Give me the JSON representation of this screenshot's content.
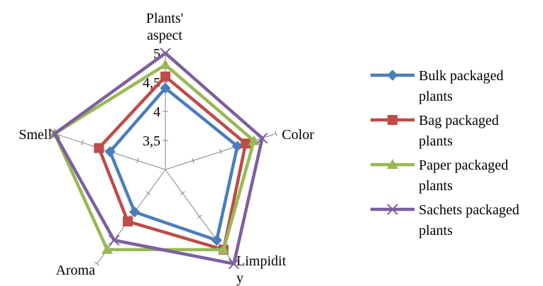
{
  "chart_data": {
    "type": "radar",
    "title": "",
    "axes": [
      "Plants' aspect",
      "Color",
      "Limpidity",
      "Aroma",
      "Smell"
    ],
    "axis_label_lines": [
      [
        "Plants'",
        "aspect"
      ],
      [
        "Color"
      ],
      [
        "Limpidit",
        "y"
      ],
      [
        "Aroma"
      ],
      [
        "Smell"
      ]
    ],
    "r_range": [
      3,
      5
    ],
    "ticks": [
      "3,5",
      "4",
      "4,5",
      "5"
    ],
    "tick_values": [
      3.5,
      4,
      4.5,
      5
    ],
    "legend_position": "right",
    "series": [
      {
        "name": "Bulk packaged plants",
        "name_lines": [
          "Bulk packaged",
          "plants"
        ],
        "color": "#4a7ebb",
        "marker": "diamond",
        "values": [
          4.4,
          4.3,
          4.5,
          3.9,
          4.0
        ]
      },
      {
        "name": "Bag packaged plants",
        "name_lines": [
          "Bag packaged",
          "plants"
        ],
        "color": "#be4b48",
        "marker": "square",
        "values": [
          4.6,
          4.45,
          4.7,
          4.1,
          4.2
        ]
      },
      {
        "name": "Paper packaged plants",
        "name_lines": [
          "Paper packaged",
          "plants"
        ],
        "color": "#98b954",
        "marker": "triangle",
        "values": [
          4.8,
          4.6,
          4.7,
          4.7,
          5.0
        ]
      },
      {
        "name": "Sachets packaged plants",
        "name_lines": [
          "Sachets packaged",
          "plants"
        ],
        "color": "#7d5fa0",
        "marker": "x",
        "values": [
          5.0,
          4.75,
          5.0,
          4.5,
          5.0
        ]
      }
    ]
  }
}
